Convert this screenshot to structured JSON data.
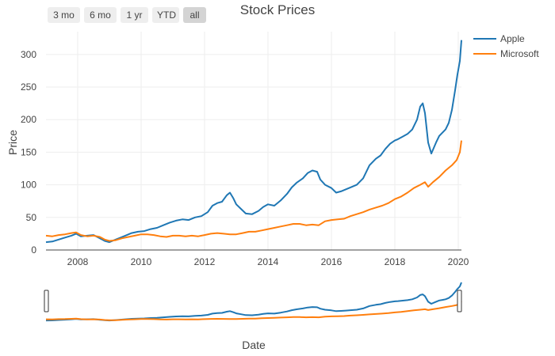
{
  "toolbar": {
    "buttons": [
      {
        "label": "3 mo",
        "active": false
      },
      {
        "label": "6 mo",
        "active": false
      },
      {
        "label": "1 yr",
        "active": false
      },
      {
        "label": "YTD",
        "active": false
      },
      {
        "label": "all",
        "active": true
      }
    ]
  },
  "chart_data": {
    "type": "line",
    "title": "Stock Prices",
    "xlabel": "Date",
    "ylabel": "Price",
    "xlim": [
      2007.0,
      2020.1
    ],
    "ylim": [
      0,
      335
    ],
    "xticks": [
      "2008",
      "2010",
      "2012",
      "2014",
      "2016",
      "2018",
      "2020"
    ],
    "xtick_values": [
      2008,
      2010,
      2012,
      2014,
      2016,
      2018,
      2020
    ],
    "yticks": [
      0,
      50,
      100,
      150,
      200,
      250,
      300
    ],
    "grid": true,
    "legend_position": "top-right",
    "range_slider": true,
    "series": [
      {
        "name": "Apple",
        "color": "#1f77b4",
        "x": [
          2007.0,
          2007.2,
          2007.4,
          2007.6,
          2007.8,
          2007.95,
          2008.1,
          2008.3,
          2008.5,
          2008.7,
          2008.85,
          2009.0,
          2009.15,
          2009.3,
          2009.5,
          2009.7,
          2009.9,
          2010.1,
          2010.3,
          2010.5,
          2010.7,
          2010.9,
          2011.1,
          2011.3,
          2011.5,
          2011.7,
          2011.9,
          2012.1,
          2012.25,
          2012.4,
          2012.55,
          2012.7,
          2012.8,
          2012.9,
          2013.0,
          2013.15,
          2013.3,
          2013.5,
          2013.7,
          2013.85,
          2014.0,
          2014.2,
          2014.4,
          2014.6,
          2014.75,
          2014.9,
          2015.1,
          2015.25,
          2015.4,
          2015.55,
          2015.65,
          2015.8,
          2016.0,
          2016.15,
          2016.3,
          2016.45,
          2016.6,
          2016.8,
          2017.0,
          2017.2,
          2017.4,
          2017.55,
          2017.7,
          2017.85,
          2018.0,
          2018.1,
          2018.25,
          2018.4,
          2018.55,
          2018.7,
          2018.8,
          2018.88,
          2018.95,
          2019.05,
          2019.15,
          2019.3,
          2019.4,
          2019.5,
          2019.6,
          2019.7,
          2019.8,
          2019.9,
          2019.97,
          2020.05,
          2020.1
        ],
        "y": [
          12,
          13,
          16,
          19,
          22,
          25,
          21,
          22,
          23,
          18,
          14,
          12,
          15,
          18,
          22,
          26,
          28,
          29,
          32,
          34,
          38,
          42,
          45,
          47,
          46,
          50,
          52,
          58,
          68,
          72,
          74,
          84,
          88,
          80,
          70,
          63,
          56,
          55,
          60,
          66,
          70,
          68,
          76,
          86,
          96,
          103,
          110,
          118,
          122,
          120,
          108,
          100,
          95,
          88,
          90,
          93,
          96,
          100,
          110,
          130,
          140,
          145,
          155,
          163,
          168,
          170,
          174,
          178,
          185,
          200,
          220,
          225,
          210,
          165,
          148,
          165,
          175,
          180,
          185,
          195,
          215,
          245,
          268,
          290,
          322
        ]
      },
      {
        "name": "Microsoft",
        "color": "#ff7f0e",
        "x": [
          2007.0,
          2007.2,
          2007.4,
          2007.6,
          2007.8,
          2007.95,
          2008.1,
          2008.3,
          2008.5,
          2008.7,
          2008.85,
          2009.0,
          2009.2,
          2009.4,
          2009.6,
          2009.8,
          2010.0,
          2010.2,
          2010.4,
          2010.6,
          2010.8,
          2011.0,
          2011.2,
          2011.4,
          2011.6,
          2011.8,
          2012.0,
          2012.2,
          2012.4,
          2012.6,
          2012.8,
          2013.0,
          2013.2,
          2013.4,
          2013.6,
          2013.8,
          2014.0,
          2014.2,
          2014.4,
          2014.6,
          2014.8,
          2015.0,
          2015.2,
          2015.4,
          2015.6,
          2015.8,
          2016.0,
          2016.2,
          2016.4,
          2016.6,
          2016.8,
          2017.0,
          2017.2,
          2017.4,
          2017.6,
          2017.8,
          2018.0,
          2018.2,
          2018.4,
          2018.6,
          2018.8,
          2018.95,
          2019.05,
          2019.2,
          2019.4,
          2019.6,
          2019.8,
          2019.95,
          2020.05,
          2020.1
        ],
        "y": [
          22,
          21,
          23,
          24,
          26,
          27,
          23,
          21,
          22,
          20,
          16,
          14,
          15,
          18,
          20,
          22,
          24,
          24,
          23,
          21,
          20,
          22,
          22,
          21,
          22,
          21,
          23,
          25,
          26,
          25,
          24,
          24,
          26,
          28,
          28,
          30,
          32,
          34,
          36,
          38,
          40,
          40,
          38,
          39,
          38,
          44,
          46,
          47,
          48,
          52,
          55,
          58,
          62,
          65,
          68,
          72,
          78,
          82,
          88,
          95,
          100,
          104,
          97,
          104,
          112,
          122,
          130,
          138,
          150,
          168
        ]
      }
    ]
  }
}
